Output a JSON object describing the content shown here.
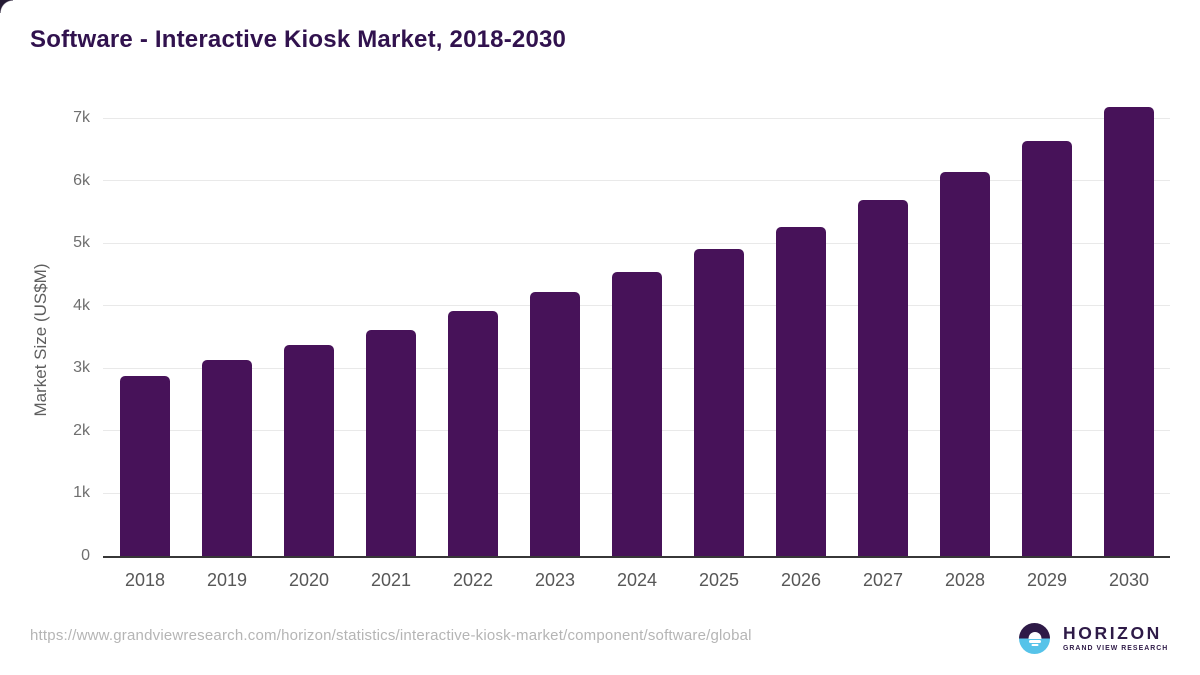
{
  "chart_data": {
    "type": "bar",
    "title": "Software - Interactive Kiosk Market, 2018-2030",
    "categories": [
      "2018",
      "2019",
      "2020",
      "2021",
      "2022",
      "2023",
      "2024",
      "2025",
      "2026",
      "2027",
      "2028",
      "2029",
      "2030"
    ],
    "values": [
      2870,
      3140,
      3380,
      3620,
      3910,
      4220,
      4540,
      4900,
      5260,
      5690,
      6130,
      6630,
      7170
    ],
    "xlabel": "",
    "ylabel": "Market Size (US$M)",
    "ylim": [
      0,
      7000
    ],
    "yticks": [
      "0",
      "1k",
      "2k",
      "3k",
      "4k",
      "5k",
      "6k",
      "7k"
    ],
    "grid": true,
    "legend": "none",
    "bar_color": "#471259"
  },
  "footer": {
    "source_url": "https://www.grandviewresearch.com/horizon/statistics/interactive-kiosk-market/component/software/global",
    "logo": {
      "name": "HORIZON",
      "subtitle": "GRAND VIEW RESEARCH",
      "sun_icon": "sun-over-water-icon"
    }
  },
  "colors": {
    "bar": "#471259",
    "title_text": "#31124e",
    "axis_text": "#6f6f6f",
    "gridline": "#e9e9e9",
    "axis_line": "#373737",
    "url_text": "#b5b5b5",
    "logo_purple": "#2e1a47",
    "logo_blue": "#56c3e9"
  }
}
